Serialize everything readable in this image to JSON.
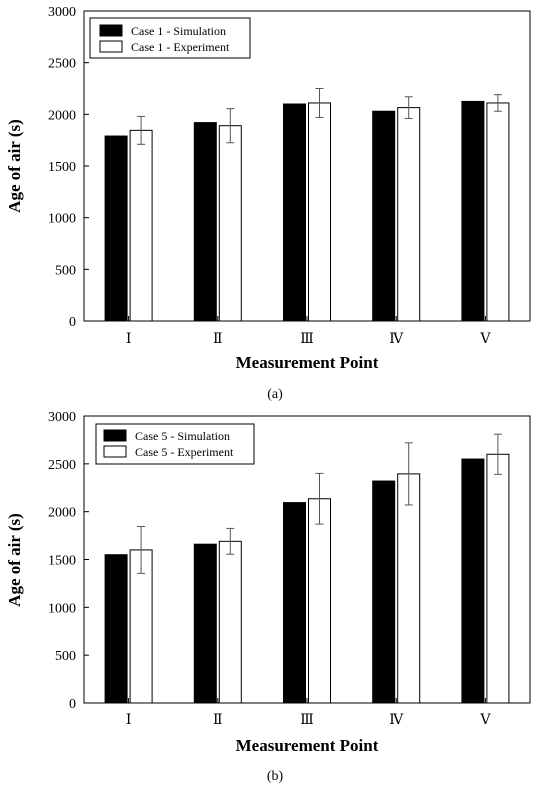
{
  "chart_data": [
    {
      "type": "bar",
      "caption": "(a)",
      "categories": [
        "Ⅰ",
        "Ⅱ",
        "Ⅲ",
        "Ⅳ",
        "Ⅴ"
      ],
      "series": [
        {
          "name": "Case 1 - Simulation",
          "color": "#000000",
          "values": [
            1790,
            1920,
            2100,
            2030,
            2125
          ]
        },
        {
          "name": "Case 1 - Experiment",
          "color": "#ffffff",
          "values": [
            1845,
            1890,
            2110,
            2065,
            2110
          ],
          "error": [
            135,
            165,
            140,
            105,
            80
          ]
        }
      ],
      "xlabel": "Measurement Point",
      "ylabel": "Age of air (s)",
      "ylim": [
        0,
        3000
      ],
      "yticks": [
        0,
        500,
        1000,
        1500,
        2000,
        2500,
        3000
      ],
      "legend": "top-left",
      "grid": false
    },
    {
      "type": "bar",
      "caption": "(b)",
      "categories": [
        "Ⅰ",
        "Ⅱ",
        "Ⅲ",
        "Ⅳ",
        "Ⅴ"
      ],
      "series": [
        {
          "name": "Case 5 - Simulation",
          "color": "#000000",
          "values": [
            1550,
            1660,
            2095,
            2320,
            2550
          ]
        },
        {
          "name": "Case 5 - Experiment",
          "color": "#ffffff",
          "values": [
            1600,
            1690,
            2135,
            2395,
            2600
          ],
          "error": [
            245,
            135,
            265,
            325,
            210
          ]
        }
      ],
      "xlabel": "Measurement Point",
      "ylabel": "Age of air (s)",
      "ylim": [
        0,
        3000
      ],
      "yticks": [
        0,
        500,
        1000,
        1500,
        2000,
        2500,
        3000
      ],
      "legend": "top-left",
      "grid": false
    }
  ]
}
